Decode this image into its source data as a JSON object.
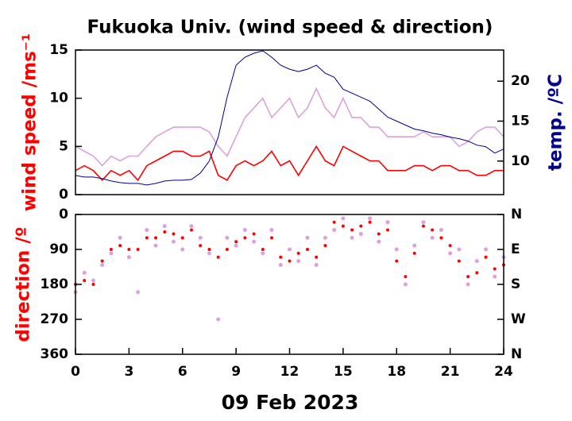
{
  "chart_data": [
    {
      "type": "line",
      "title": "Fukuoka Univ. (wind speed & direction)",
      "ylabel": "wind speed /ms⁻¹",
      "y2label": "temp. /ºC",
      "xlim": [
        0,
        24
      ],
      "x": [
        0,
        0.5,
        1,
        1.5,
        2,
        2.5,
        3,
        3.5,
        4,
        4.5,
        5,
        5.5,
        6,
        6.5,
        7,
        7.5,
        8,
        8.5,
        9,
        9.5,
        10,
        10.5,
        11,
        11.5,
        12,
        12.5,
        13,
        13.5,
        14,
        14.5,
        15,
        15.5,
        16,
        16.5,
        17,
        17.5,
        18,
        18.5,
        19,
        19.5,
        20,
        20.5,
        21,
        21.5,
        22,
        22.5,
        23,
        23.5,
        24
      ],
      "ylim": [
        0,
        15
      ],
      "yticks": [
        0,
        5,
        10,
        15
      ],
      "y2lim": [
        5.8,
        23.9
      ],
      "y2ticks": [
        10,
        15,
        20
      ],
      "series": [
        {
          "color": "#dda0dd",
          "values": [
            5,
            4.5,
            4,
            3,
            4,
            3.5,
            4,
            4,
            5,
            6,
            6.5,
            7,
            7,
            7,
            7,
            6.5,
            5,
            4,
            6,
            8,
            9,
            10,
            8,
            9,
            10,
            8,
            9,
            11,
            9,
            8,
            10,
            8,
            8,
            7,
            7,
            6,
            6,
            6,
            6,
            6.5,
            6,
            6,
            6,
            5,
            5.5,
            6.5,
            7,
            7,
            6
          ]
        },
        {
          "color": "#ff0000",
          "values": [
            2.5,
            3,
            2.5,
            1.5,
            2.5,
            2,
            2.5,
            1.5,
            3,
            3.5,
            4,
            4.5,
            4.5,
            4,
            4,
            4.5,
            2,
            1.5,
            3,
            3.5,
            3,
            3.5,
            4.5,
            3,
            3.5,
            2,
            3.5,
            5,
            3.5,
            3,
            5,
            4.5,
            4,
            3.5,
            3.5,
            2.5,
            2.5,
            2.5,
            3,
            3,
            2.5,
            3,
            3,
            2.5,
            2.5,
            2,
            2,
            2.5,
            2.5
          ]
        },
        {
          "color": "#00008b",
          "axis": "y2",
          "values": [
            8.2,
            8,
            8,
            7.8,
            7.5,
            7.3,
            7.2,
            7.2,
            7,
            7.2,
            7.5,
            7.6,
            7.6,
            7.7,
            8.5,
            10,
            13,
            18,
            22,
            23,
            23.5,
            23.8,
            23,
            22,
            21.5,
            21.2,
            21.5,
            22,
            21,
            20.5,
            19,
            18.5,
            18,
            17.5,
            16.5,
            15.5,
            15,
            14.5,
            14,
            13.8,
            13.5,
            13.3,
            13,
            12.8,
            12.5,
            12,
            11.8,
            11,
            11.5
          ]
        }
      ]
    },
    {
      "type": "scatter",
      "ylabel": "direction /º",
      "xlabel": "09 Feb 2023",
      "xlim": [
        0,
        24
      ],
      "xticks": [
        0,
        3,
        6,
        9,
        12,
        15,
        18,
        21,
        24
      ],
      "x": [
        0,
        0.5,
        1,
        1.5,
        2,
        2.5,
        3,
        3.5,
        4,
        4.5,
        5,
        5.5,
        6,
        6.5,
        7,
        7.5,
        8,
        8.5,
        9,
        9.5,
        10,
        10.5,
        11,
        11.5,
        12,
        12.5,
        13,
        13.5,
        14,
        14.5,
        15,
        15.5,
        16,
        16.5,
        17,
        17.5,
        18,
        18.5,
        19,
        19.5,
        20,
        20.5,
        21,
        21.5,
        22,
        22.5,
        23,
        23.5,
        24
      ],
      "ylim": [
        360,
        0
      ],
      "yticks": [
        0,
        90,
        180,
        270,
        360
      ],
      "y2lim": [
        360,
        0
      ],
      "y2ticks": [
        {
          "value": 0,
          "label": "N"
        },
        {
          "value": 90,
          "label": "E"
        },
        {
          "value": 180,
          "label": "S"
        },
        {
          "value": 270,
          "label": "W"
        },
        {
          "value": 360,
          "label": "N"
        }
      ],
      "series": [
        {
          "color": "#dda0dd",
          "values": [
            200,
            150,
            170,
            130,
            100,
            60,
            110,
            200,
            40,
            80,
            30,
            70,
            90,
            30,
            60,
            100,
            270,
            60,
            80,
            40,
            70,
            100,
            40,
            130,
            90,
            120,
            60,
            130,
            60,
            40,
            10,
            60,
            50,
            10,
            70,
            20,
            90,
            180,
            80,
            20,
            60,
            40,
            100,
            90,
            180,
            120,
            90,
            160,
            110
          ]
        },
        {
          "color": "#ff0000",
          "values": [
            180,
            170,
            180,
            120,
            90,
            80,
            90,
            90,
            60,
            60,
            45,
            50,
            60,
            40,
            80,
            90,
            110,
            90,
            70,
            60,
            50,
            90,
            60,
            110,
            120,
            100,
            90,
            110,
            80,
            20,
            30,
            40,
            30,
            20,
            50,
            40,
            120,
            160,
            100,
            30,
            40,
            60,
            80,
            120,
            160,
            150,
            110,
            140,
            130
          ]
        }
      ]
    }
  ]
}
